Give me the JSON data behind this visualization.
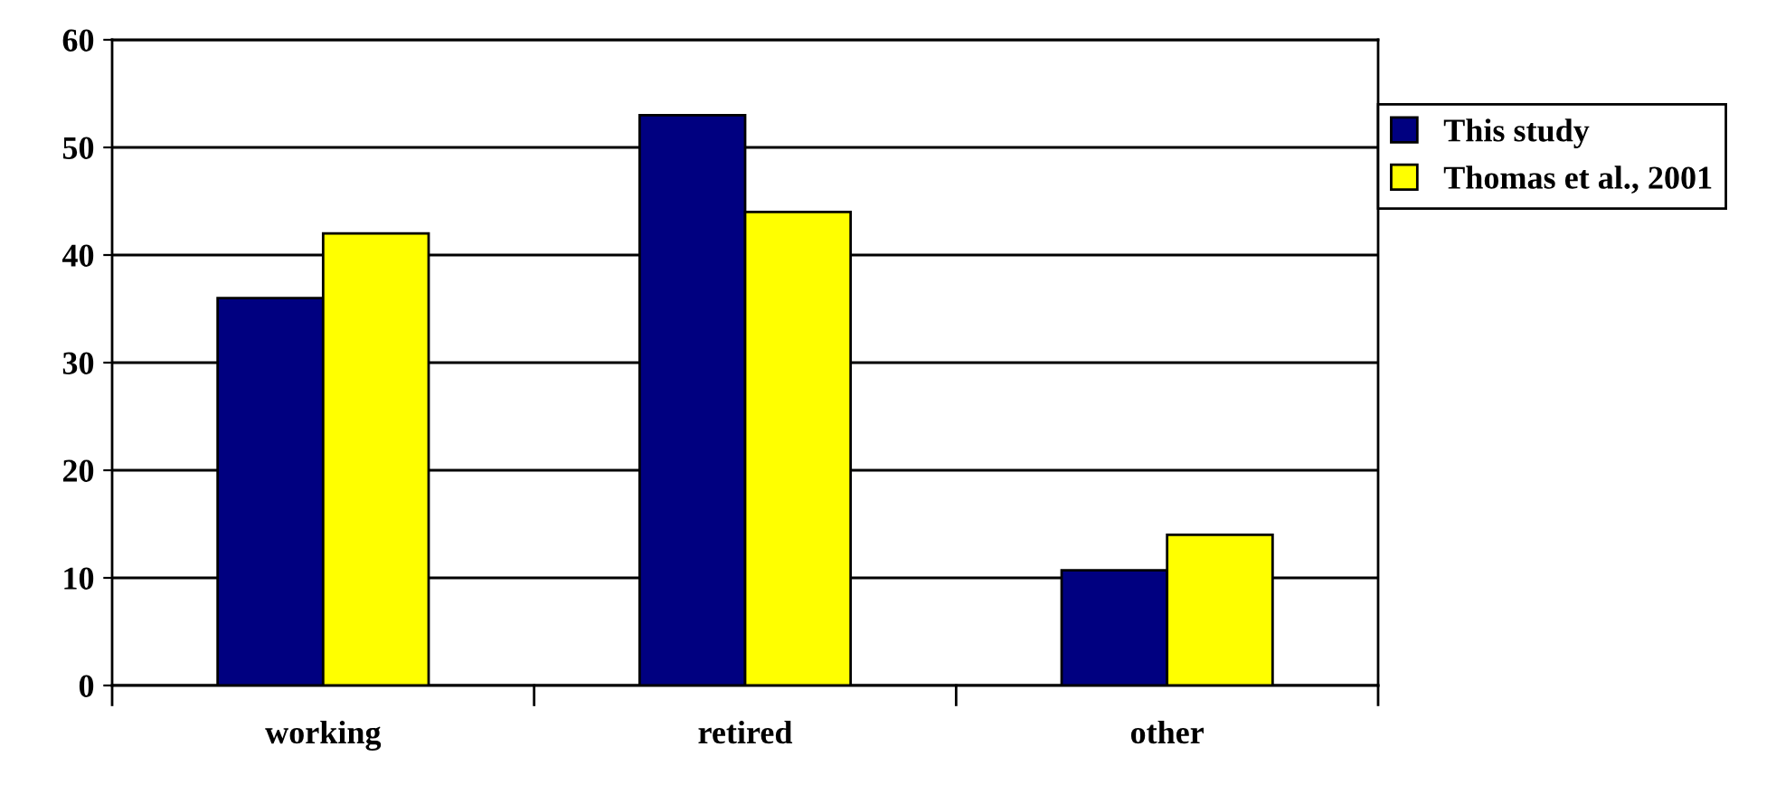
{
  "chart_data": {
    "type": "bar",
    "categories": [
      "working",
      "retired",
      "other"
    ],
    "series": [
      {
        "name": "This study",
        "color": "#000080",
        "values": [
          36,
          53,
          10.7
        ]
      },
      {
        "name": "Thomas et al., 2001",
        "color": "#ffff00",
        "values": [
          42,
          44,
          14
        ]
      }
    ],
    "ylim": [
      0,
      60
    ],
    "yticks": [
      0,
      10,
      20,
      30,
      40,
      50,
      60
    ],
    "grid": "y",
    "legend": "top right"
  }
}
